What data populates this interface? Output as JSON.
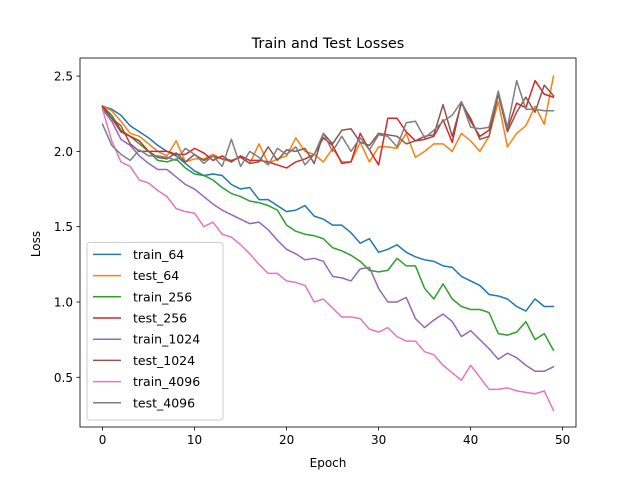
{
  "chart_data": {
    "type": "line",
    "title": "Train and Test Losses",
    "xlabel": "Epoch",
    "ylabel": "Loss",
    "xlim": [
      -2.45,
      51.45
    ],
    "ylim": [
      0.17,
      2.62
    ],
    "xticks": [
      0,
      10,
      20,
      30,
      40,
      50
    ],
    "yticks": [
      0.5,
      1.0,
      1.5,
      2.0,
      2.5
    ],
    "ytick_labels": [
      "0.5",
      "1.0",
      "1.5",
      "2.0",
      "2.5"
    ],
    "grid": false,
    "legend_position": "lower-left",
    "x": [
      0,
      1,
      2,
      3,
      4,
      5,
      6,
      7,
      8,
      9,
      10,
      11,
      12,
      13,
      14,
      15,
      16,
      17,
      18,
      19,
      20,
      21,
      22,
      23,
      24,
      25,
      26,
      27,
      28,
      29,
      30,
      31,
      32,
      33,
      34,
      35,
      36,
      37,
      38,
      39,
      40,
      41,
      42,
      43,
      44,
      45,
      46,
      47,
      48,
      49
    ],
    "series": [
      {
        "name": "train_64",
        "color": "#1f77b4",
        "values": [
          2.3,
          2.28,
          2.24,
          2.17,
          2.13,
          2.09,
          2.04,
          2.0,
          1.97,
          1.92,
          1.87,
          1.84,
          1.85,
          1.84,
          1.78,
          1.75,
          1.76,
          1.68,
          1.68,
          1.64,
          1.6,
          1.61,
          1.64,
          1.57,
          1.55,
          1.51,
          1.51,
          1.46,
          1.39,
          1.42,
          1.33,
          1.35,
          1.38,
          1.33,
          1.3,
          1.28,
          1.27,
          1.24,
          1.23,
          1.17,
          1.14,
          1.11,
          1.05,
          1.04,
          1.02,
          0.97,
          0.94,
          1.02,
          0.97,
          0.97
        ]
      },
      {
        "name": "test_64",
        "color": "#ff7f0e",
        "values": [
          2.3,
          2.27,
          2.2,
          2.12,
          2.1,
          2.05,
          2.0,
          1.97,
          2.07,
          1.93,
          1.95,
          1.95,
          1.98,
          1.95,
          1.93,
          1.97,
          1.92,
          2.05,
          1.92,
          1.95,
          1.97,
          2.09,
          2.0,
          1.98,
          1.93,
          2.02,
          1.93,
          1.93,
          2.06,
          1.93,
          2.03,
          2.03,
          2.02,
          2.12,
          1.96,
          2.0,
          2.05,
          2.05,
          2.0,
          2.12,
          2.07,
          2.0,
          2.1,
          2.33,
          2.03,
          2.12,
          2.17,
          2.3,
          2.18,
          2.5
        ]
      },
      {
        "name": "train_256",
        "color": "#2ca02c",
        "values": [
          2.3,
          2.24,
          2.14,
          2.1,
          2.05,
          2.0,
          1.94,
          1.93,
          1.95,
          1.89,
          1.85,
          1.84,
          1.81,
          1.76,
          1.72,
          1.7,
          1.67,
          1.66,
          1.64,
          1.61,
          1.51,
          1.47,
          1.45,
          1.44,
          1.42,
          1.36,
          1.34,
          1.31,
          1.27,
          1.21,
          1.2,
          1.21,
          1.29,
          1.24,
          1.24,
          1.09,
          1.02,
          1.12,
          1.02,
          0.97,
          0.95,
          0.95,
          0.93,
          0.79,
          0.78,
          0.8,
          0.87,
          0.75,
          0.79,
          0.68
        ]
      },
      {
        "name": "test_256",
        "color": "#d62728",
        "values": [
          2.3,
          2.22,
          2.13,
          2.1,
          2.07,
          2.0,
          2.0,
          2.0,
          1.98,
          1.98,
          2.02,
          1.99,
          1.94,
          1.97,
          1.93,
          1.97,
          1.94,
          1.94,
          1.93,
          1.91,
          1.89,
          1.93,
          1.95,
          1.98,
          2.09,
          2.04,
          1.92,
          1.93,
          2.12,
          2.01,
          1.91,
          2.22,
          2.22,
          2.13,
          2.07,
          2.08,
          2.1,
          2.21,
          2.06,
          2.33,
          2.2,
          2.1,
          2.14,
          2.38,
          2.15,
          2.32,
          2.29,
          2.47,
          2.38,
          2.36
        ]
      },
      {
        "name": "train_1024",
        "color": "#9467bd",
        "values": [
          2.28,
          2.2,
          2.08,
          2.04,
          1.97,
          1.92,
          1.88,
          1.88,
          1.83,
          1.78,
          1.75,
          1.7,
          1.65,
          1.61,
          1.58,
          1.55,
          1.52,
          1.53,
          1.48,
          1.41,
          1.35,
          1.32,
          1.28,
          1.29,
          1.27,
          1.17,
          1.16,
          1.14,
          1.22,
          1.23,
          1.09,
          1.0,
          1.0,
          1.03,
          0.89,
          0.83,
          0.88,
          0.92,
          0.87,
          0.77,
          0.81,
          0.75,
          0.69,
          0.62,
          0.66,
          0.63,
          0.58,
          0.54,
          0.54,
          0.57
        ]
      },
      {
        "name": "test_1024",
        "color": "#8c564b",
        "values": [
          2.29,
          2.22,
          2.17,
          2.05,
          2.0,
          2.0,
          1.96,
          1.95,
          1.99,
          1.93,
          1.98,
          1.94,
          1.97,
          1.95,
          1.94,
          1.96,
          1.92,
          1.93,
          2.03,
          1.94,
          2.01,
          2.0,
          2.02,
          1.92,
          2.12,
          2.05,
          2.14,
          2.15,
          2.06,
          2.04,
          2.12,
          2.11,
          2.1,
          2.05,
          2.07,
          2.1,
          2.11,
          2.31,
          2.1,
          2.32,
          2.22,
          2.08,
          2.1,
          2.38,
          2.13,
          2.26,
          2.36,
          2.26,
          2.44,
          2.37
        ]
      },
      {
        "name": "train_4096",
        "color": "#e377c2",
        "values": [
          2.28,
          2.07,
          1.93,
          1.9,
          1.81,
          1.79,
          1.74,
          1.7,
          1.62,
          1.6,
          1.59,
          1.5,
          1.53,
          1.45,
          1.43,
          1.38,
          1.32,
          1.25,
          1.19,
          1.19,
          1.14,
          1.13,
          1.11,
          1.0,
          1.02,
          0.96,
          0.9,
          0.9,
          0.89,
          0.82,
          0.8,
          0.83,
          0.77,
          0.74,
          0.74,
          0.67,
          0.65,
          0.58,
          0.53,
          0.48,
          0.58,
          0.5,
          0.42,
          0.42,
          0.43,
          0.41,
          0.4,
          0.39,
          0.41,
          0.28
        ]
      },
      {
        "name": "test_4096",
        "color": "#7f7f7f",
        "values": [
          2.18,
          2.04,
          1.98,
          1.94,
          2.01,
          1.97,
          1.97,
          1.96,
          1.94,
          2.02,
          1.98,
          1.92,
          1.97,
          1.9,
          2.08,
          1.9,
          2.0,
          1.96,
          1.91,
          2.02,
          1.98,
          2.03,
          1.91,
          1.98,
          2.12,
          2.0,
          2.1,
          2.0,
          2.09,
          2.01,
          2.11,
          2.1,
          2.03,
          2.19,
          2.2,
          2.09,
          2.14,
          2.2,
          2.24,
          2.33,
          2.16,
          2.15,
          2.16,
          2.4,
          2.16,
          2.47,
          2.28,
          2.28,
          2.27,
          2.27
        ]
      }
    ]
  }
}
